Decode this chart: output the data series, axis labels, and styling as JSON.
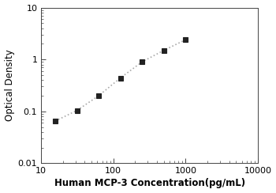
{
  "x": [
    15.625,
    31.25,
    62.5,
    125,
    250,
    500,
    1000
  ],
  "y": [
    0.065,
    0.104,
    0.2,
    0.44,
    0.9,
    1.5,
    2.4
  ],
  "xlabel": "Human MCP-3 Concentration(pg/mL)",
  "ylabel": "Optical Density",
  "xlim": [
    10,
    10000
  ],
  "ylim": [
    0.01,
    10
  ],
  "xticks": [
    10,
    100,
    1000,
    10000
  ],
  "xtick_labels": [
    "10",
    "100",
    "1000",
    "10000"
  ],
  "yticks": [
    0.01,
    0.1,
    1,
    10
  ],
  "ytick_labels": [
    "0.01",
    "0.1",
    "1",
    "10"
  ],
  "line_color": "#aaaaaa",
  "marker_color": "#222222",
  "marker": "s",
  "marker_size": 5,
  "line_style": ":",
  "line_width": 1.2,
  "xlabel_fontsize": 8.5,
  "ylabel_fontsize": 8.5,
  "tick_fontsize": 8,
  "background_color": "#ffffff"
}
